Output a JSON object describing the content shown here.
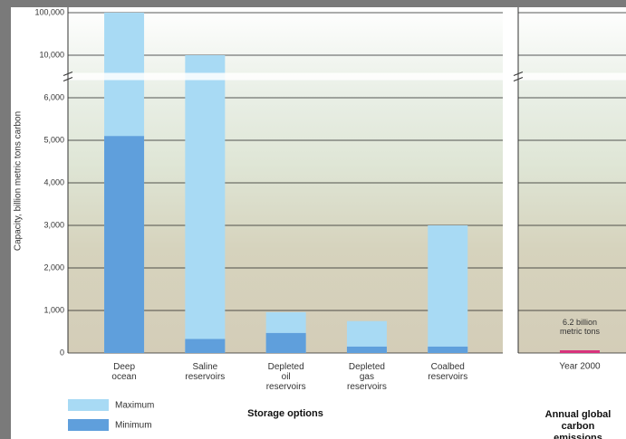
{
  "chart_data": [
    {
      "type": "bar",
      "y_label": "Capacity, billion metric tons carbon",
      "x_label": "Storage options",
      "categories": [
        "Deep ocean",
        "Saline reservoirs",
        "Depleted oil reservoirs",
        "Depleted gas reservoirs",
        "Coalbed reservoirs"
      ],
      "series": [
        {
          "name": "Maximum",
          "color": "#a8daf4",
          "values": [
            100000,
            10000,
            960,
            750,
            3000
          ]
        },
        {
          "name": "Minimum",
          "color": "#5f9fdc",
          "values": [
            5100,
            330,
            470,
            150,
            150
          ]
        }
      ],
      "ylim": [
        0,
        100000
      ],
      "yticks": [
        0,
        {
          "value": 1000,
          "label": "1,000"
        },
        {
          "value": 2000,
          "label": "2,000"
        },
        {
          "value": 3000,
          "label": "3,000"
        },
        {
          "value": 4000,
          "label": "4,000"
        },
        {
          "value": 5000,
          "label": "5,000"
        },
        {
          "value": 6000,
          "label": "6,000"
        },
        {
          "value": 10000,
          "label": "10,000"
        },
        {
          "value": 100000,
          "label": "100,000"
        }
      ],
      "axis_break": [
        6000,
        10000
      ],
      "grid": true
    },
    {
      "type": "bar",
      "title": "Annual global carbon emissions",
      "categories": [
        "Year 2000"
      ],
      "values": [
        6.2
      ],
      "value_labels": [
        "6.2 billion metric tons"
      ],
      "color": "#d8327c"
    }
  ]
}
